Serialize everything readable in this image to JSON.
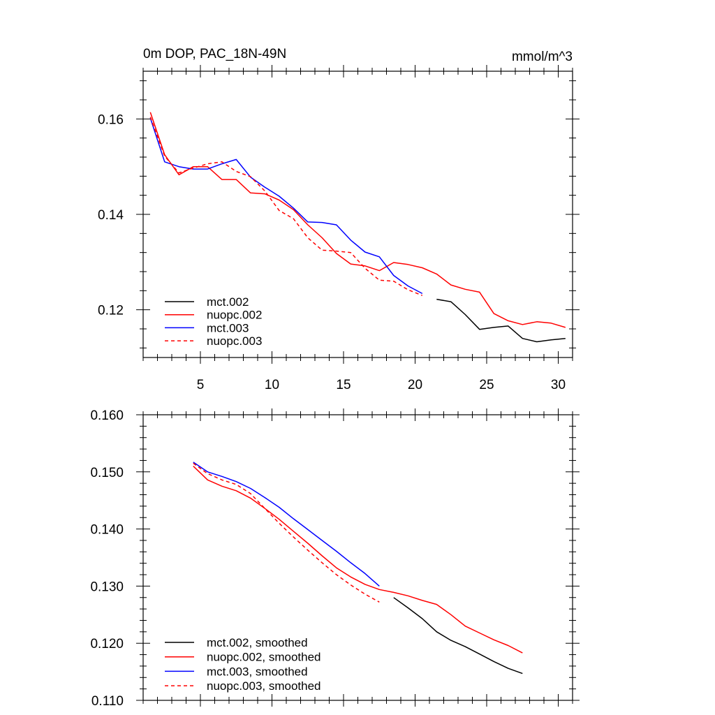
{
  "chart_data": [
    {
      "type": "line",
      "title_left": "0m DOP, PAC_18N-49N",
      "title_right": "mmol/m^3",
      "xlim": [
        1,
        31
      ],
      "ylim": [
        0.11,
        0.17
      ],
      "xticks": [
        5,
        10,
        15,
        20,
        25,
        30
      ],
      "xtick_labels": [
        "5",
        "10",
        "15",
        "20",
        "25",
        "30"
      ],
      "yticks": [
        0.12,
        0.14,
        0.16
      ],
      "ytick_labels": [
        "0.12",
        "0.14",
        "0.16"
      ],
      "legend_position": "bottom-left",
      "series": [
        {
          "name": "mct.002",
          "color": "#000000",
          "dash": "solid",
          "points": [
            [
              21.5,
              0.1222
            ],
            [
              22.5,
              0.1217
            ],
            [
              23.5,
              0.119
            ],
            [
              24.5,
              0.1159
            ],
            [
              25.5,
              0.1163
            ],
            [
              26.5,
              0.1166
            ],
            [
              27.5,
              0.114
            ],
            [
              28.5,
              0.1133
            ],
            [
              29.5,
              0.1137
            ],
            [
              30.5,
              0.114
            ]
          ]
        },
        {
          "name": "nuopc.002",
          "color": "#ff0000",
          "dash": "solid",
          "points": [
            [
              1.5,
              0.1614
            ],
            [
              2.5,
              0.1525
            ],
            [
              3.5,
              0.1483
            ],
            [
              4.5,
              0.15
            ],
            [
              5.5,
              0.15
            ],
            [
              6.5,
              0.1473
            ],
            [
              7.5,
              0.1473
            ],
            [
              8.5,
              0.1445
            ],
            [
              9.5,
              0.1443
            ],
            [
              10.5,
              0.143
            ],
            [
              11.5,
              0.141
            ],
            [
              12.5,
              0.1378
            ],
            [
              13.5,
              0.1351
            ],
            [
              14.5,
              0.1318
            ],
            [
              15.5,
              0.1296
            ],
            [
              16.5,
              0.1292
            ],
            [
              17.5,
              0.1282
            ],
            [
              18.5,
              0.1299
            ],
            [
              19.5,
              0.1295
            ],
            [
              20.5,
              0.1288
            ],
            [
              21.5,
              0.1275
            ],
            [
              22.5,
              0.1252
            ],
            [
              23.5,
              0.1243
            ],
            [
              24.5,
              0.1237
            ],
            [
              25.5,
              0.1192
            ],
            [
              26.5,
              0.1177
            ],
            [
              27.5,
              0.1169
            ],
            [
              28.5,
              0.1175
            ],
            [
              29.5,
              0.1172
            ],
            [
              30.5,
              0.1163
            ]
          ]
        },
        {
          "name": "mct.003",
          "color": "#0000ff",
          "dash": "solid",
          "points": [
            [
              1.5,
              0.1602
            ],
            [
              2.5,
              0.151
            ],
            [
              3.5,
              0.15
            ],
            [
              4.5,
              0.1495
            ],
            [
              5.5,
              0.1495
            ],
            [
              6.5,
              0.1506
            ],
            [
              7.5,
              0.1515
            ],
            [
              8.5,
              0.1478
            ],
            [
              9.5,
              0.1457
            ],
            [
              10.5,
              0.1438
            ],
            [
              11.5,
              0.1413
            ],
            [
              12.5,
              0.1384
            ],
            [
              13.5,
              0.1383
            ],
            [
              14.5,
              0.1378
            ],
            [
              15.5,
              0.1346
            ],
            [
              16.5,
              0.1321
            ],
            [
              17.5,
              0.1311
            ],
            [
              18.5,
              0.1272
            ],
            [
              19.5,
              0.125
            ],
            [
              20.5,
              0.1234
            ]
          ]
        },
        {
          "name": "nuopc.003",
          "color": "#ff0000",
          "dash": "dashed",
          "points": [
            [
              1.5,
              0.1604
            ],
            [
              2.5,
              0.1522
            ],
            [
              3.5,
              0.1487
            ],
            [
              4.5,
              0.1497
            ],
            [
              5.5,
              0.1506
            ],
            [
              6.5,
              0.151
            ],
            [
              7.5,
              0.149
            ],
            [
              8.5,
              0.1479
            ],
            [
              9.5,
              0.1449
            ],
            [
              10.5,
              0.1408
            ],
            [
              11.5,
              0.1391
            ],
            [
              12.5,
              0.1351
            ],
            [
              13.5,
              0.1325
            ],
            [
              14.5,
              0.1323
            ],
            [
              15.5,
              0.132
            ],
            [
              16.5,
              0.1287
            ],
            [
              17.5,
              0.1262
            ],
            [
              18.5,
              0.126
            ],
            [
              19.5,
              0.1242
            ],
            [
              20.5,
              0.123
            ]
          ]
        }
      ]
    },
    {
      "type": "line",
      "xlim": [
        1,
        31
      ],
      "ylim": [
        0.11,
        0.16
      ],
      "xticks": [
        5,
        10,
        15,
        20,
        25,
        30
      ],
      "yticks": [
        0.11,
        0.12,
        0.13,
        0.14,
        0.15,
        0.16
      ],
      "ytick_labels": [
        "0.110",
        "0.120",
        "0.130",
        "0.140",
        "0.150",
        "0.160"
      ],
      "legend_position": "bottom-left",
      "series": [
        {
          "name": "mct.002, smoothed",
          "color": "#000000",
          "dash": "solid",
          "points": [
            [
              18.5,
              0.128
            ],
            [
              19.5,
              0.1262
            ],
            [
              20.5,
              0.1243
            ],
            [
              21.5,
              0.122
            ],
            [
              22.5,
              0.1205
            ],
            [
              23.5,
              0.1194
            ],
            [
              24.5,
              0.1181
            ],
            [
              25.5,
              0.1168
            ],
            [
              26.5,
              0.1156
            ],
            [
              27.5,
              0.1147
            ]
          ]
        },
        {
          "name": "nuopc.002, smoothed",
          "color": "#ff0000",
          "dash": "solid",
          "points": [
            [
              4.5,
              0.151
            ],
            [
              5.5,
              0.1486
            ],
            [
              6.5,
              0.1475
            ],
            [
              7.5,
              0.1467
            ],
            [
              8.5,
              0.1454
            ],
            [
              9.5,
              0.1436
            ],
            [
              10.5,
              0.1417
            ],
            [
              11.5,
              0.1396
            ],
            [
              12.5,
              0.1375
            ],
            [
              13.5,
              0.1353
            ],
            [
              14.5,
              0.1332
            ],
            [
              15.5,
              0.1316
            ],
            [
              16.5,
              0.1303
            ],
            [
              17.5,
              0.1294
            ],
            [
              18.5,
              0.1289
            ],
            [
              19.5,
              0.1283
            ],
            [
              20.5,
              0.1275
            ],
            [
              21.5,
              0.1268
            ],
            [
              22.5,
              0.125
            ],
            [
              23.5,
              0.123
            ],
            [
              24.5,
              0.1218
            ],
            [
              25.5,
              0.1206
            ],
            [
              26.5,
              0.1196
            ],
            [
              27.5,
              0.1183
            ]
          ]
        },
        {
          "name": "mct.003, smoothed",
          "color": "#0000ff",
          "dash": "solid",
          "points": [
            [
              4.5,
              0.1517
            ],
            [
              5.5,
              0.15
            ],
            [
              6.5,
              0.1492
            ],
            [
              7.5,
              0.1483
            ],
            [
              8.5,
              0.1471
            ],
            [
              9.5,
              0.1455
            ],
            [
              10.5,
              0.1438
            ],
            [
              11.5,
              0.1418
            ],
            [
              12.5,
              0.1399
            ],
            [
              13.5,
              0.138
            ],
            [
              14.5,
              0.1361
            ],
            [
              15.5,
              0.1341
            ],
            [
              16.5,
              0.1322
            ],
            [
              17.5,
              0.13
            ]
          ]
        },
        {
          "name": "nuopc.003, smoothed",
          "color": "#ff0000",
          "dash": "dashed",
          "points": [
            [
              4.5,
              0.1515
            ],
            [
              5.5,
              0.1497
            ],
            [
              6.5,
              0.1486
            ],
            [
              7.5,
              0.1478
            ],
            [
              8.5,
              0.1462
            ],
            [
              9.5,
              0.1436
            ],
            [
              10.5,
              0.141
            ],
            [
              11.5,
              0.1386
            ],
            [
              12.5,
              0.1363
            ],
            [
              13.5,
              0.1341
            ],
            [
              14.5,
              0.132
            ],
            [
              15.5,
              0.1302
            ],
            [
              16.5,
              0.1286
            ],
            [
              17.5,
              0.1272
            ]
          ]
        }
      ]
    }
  ]
}
